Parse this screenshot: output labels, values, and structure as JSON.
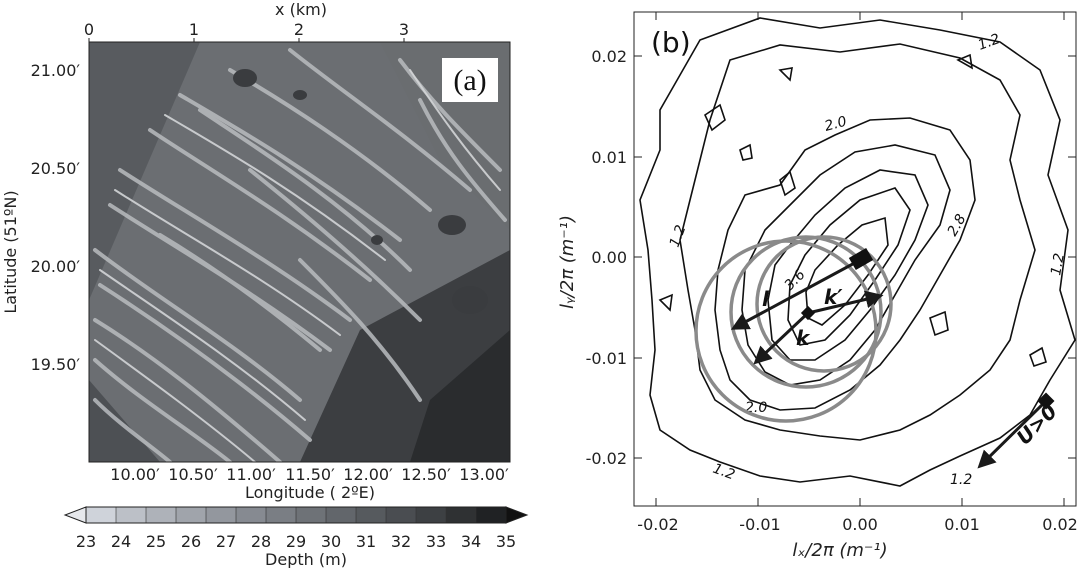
{
  "panel_a": {
    "label": "(a)",
    "top_axis": {
      "title": "x (km)",
      "ticks": [
        "0",
        "1",
        "2",
        "3"
      ]
    },
    "y_axis": {
      "title": "Latitude (51ºN)",
      "ticks": [
        "21.00′",
        "20.50′",
        "20.00′",
        "19.50′"
      ]
    },
    "x_axis": {
      "title": "Longitude (  2ºE)",
      "ticks": [
        "10.00′",
        "10.50′",
        "11.00′",
        "11.50′",
        "12.00′",
        "12.50′",
        "13.00′"
      ]
    },
    "colorbar": {
      "title": "Depth (m)",
      "ticks": [
        "23",
        "24",
        "25",
        "26",
        "27",
        "28",
        "29",
        "30",
        "31",
        "32",
        "33",
        "34",
        "35"
      ],
      "colors": [
        "#cfd3da",
        "#bcc0c7",
        "#aeb2b9",
        "#a0a4ab",
        "#93979e",
        "#868a91",
        "#7a7e84",
        "#6e7277",
        "#62666b",
        "#565a5e",
        "#4a4d51",
        "#3d4043",
        "#2f3133",
        "#202224"
      ]
    }
  },
  "panel_b": {
    "label": "(b)",
    "x_axis": {
      "title": "lₓ/2π (m⁻¹)",
      "ticks": [
        "-0.02",
        "-0.01",
        "0.00",
        "0.01",
        "0.02"
      ]
    },
    "y_axis": {
      "title": "lᵧ/2π (m⁻¹)",
      "ticks": [
        "0.02",
        "0.01",
        "0.00",
        "-0.01",
        "-0.02"
      ]
    },
    "contour_labels": [
      "1.2",
      "2.0",
      "2.8",
      "3.6",
      "1.2",
      "1.2",
      "2.0",
      "1.2",
      "1.2"
    ],
    "vector_labels": {
      "l": "l",
      "k_prime": "k′",
      "k": "k",
      "current": "U>0"
    }
  }
}
